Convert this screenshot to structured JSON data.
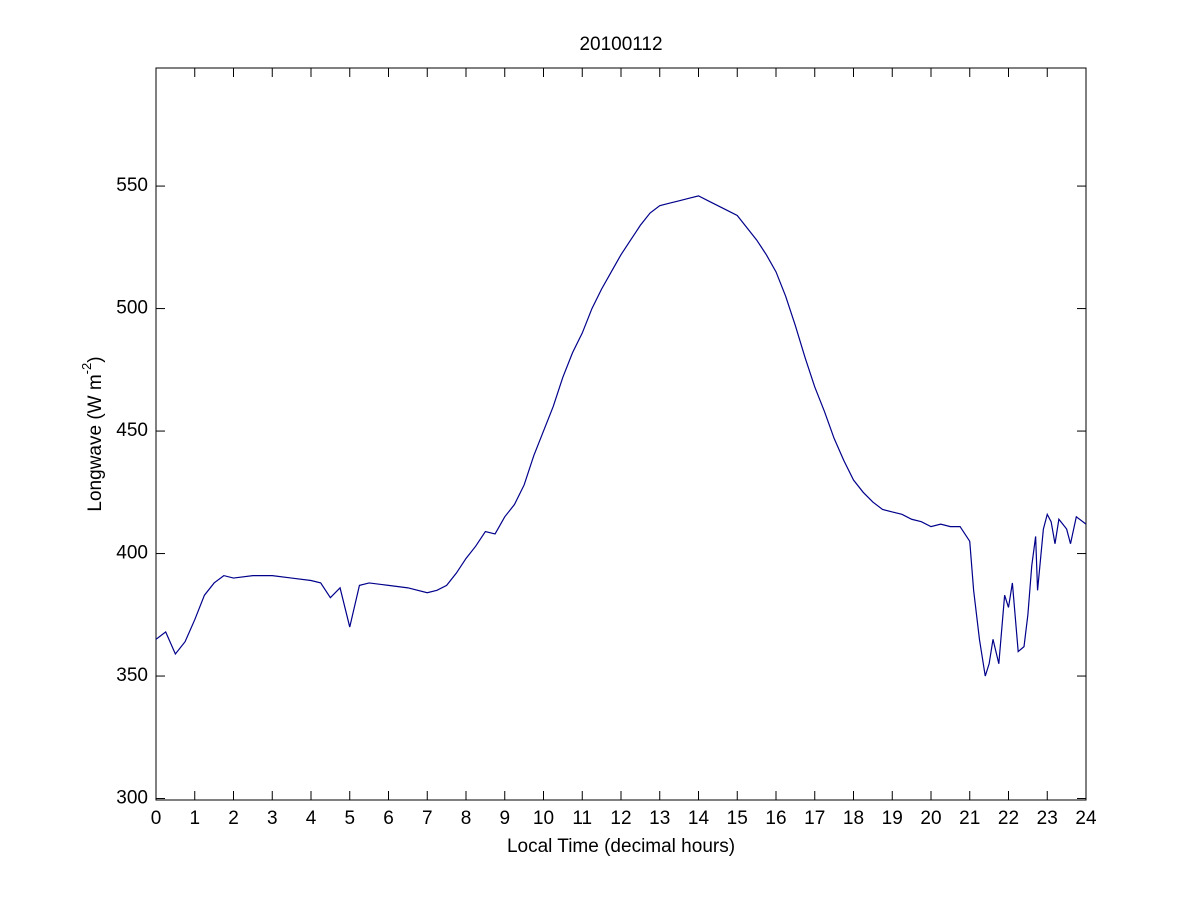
{
  "chart_data": {
    "type": "line",
    "title": "20100112",
    "xlabel": "Local Time (decimal hours)",
    "ylabel": {
      "text": "Longwave (W m",
      "superscript": "-2",
      "suffix": ")"
    },
    "xlim": [
      0,
      24
    ],
    "ylim": [
      299.4,
      598.2
    ],
    "xticks": [
      0,
      1,
      2,
      3,
      4,
      5,
      6,
      7,
      8,
      9,
      10,
      11,
      12,
      13,
      14,
      15,
      16,
      17,
      18,
      19,
      20,
      21,
      22,
      23,
      24
    ],
    "yticks": [
      300,
      350,
      400,
      450,
      500,
      550
    ],
    "grid": false,
    "series": [
      {
        "color": "#00008b",
        "x": [
          0,
          0.25,
          0.5,
          0.75,
          1,
          1.25,
          1.5,
          1.75,
          2,
          2.5,
          3,
          3.5,
          4,
          4.25,
          4.5,
          4.75,
          5,
          5.25,
          5.5,
          6,
          6.5,
          7,
          7.25,
          7.5,
          7.75,
          8,
          8.25,
          8.5,
          8.75,
          9,
          9.25,
          9.5,
          9.75,
          10,
          10.25,
          10.5,
          10.75,
          11,
          11.25,
          11.5,
          11.75,
          12,
          12.25,
          12.5,
          12.75,
          13,
          13.25,
          13.5,
          13.75,
          14,
          14.25,
          14.5,
          14.75,
          15,
          15.25,
          15.5,
          15.75,
          16,
          16.25,
          16.5,
          16.75,
          17,
          17.25,
          17.5,
          17.75,
          18,
          18.25,
          18.5,
          18.75,
          19,
          19.25,
          19.5,
          19.75,
          20,
          20.25,
          20.5,
          20.75,
          21,
          21.1,
          21.25,
          21.4,
          21.5,
          21.6,
          21.75,
          21.9,
          22,
          22.1,
          22.25,
          22.4,
          22.5,
          22.6,
          22.7,
          22.75,
          22.9,
          23,
          23.1,
          23.2,
          23.3,
          23.5,
          23.6,
          23.75,
          24
        ],
        "values": [
          365,
          368,
          359,
          364,
          373,
          383,
          388,
          391,
          390,
          391,
          391,
          390,
          389,
          388,
          382,
          386,
          370,
          387,
          388,
          387,
          386,
          384,
          385,
          387,
          392,
          398,
          403,
          409,
          408,
          415,
          420,
          428,
          440,
          450,
          460,
          472,
          482,
          490,
          500,
          508,
          515,
          522,
          528,
          534,
          539,
          542,
          543,
          544,
          545,
          546,
          544,
          542,
          540,
          538,
          533,
          528,
          522,
          515,
          505,
          493,
          480,
          468,
          458,
          447,
          438,
          430,
          425,
          421,
          418,
          417,
          416,
          414,
          413,
          411,
          412,
          411,
          411,
          405,
          385,
          365,
          350,
          355,
          365,
          355,
          383,
          378,
          388,
          360,
          362,
          375,
          395,
          407,
          385,
          410,
          416,
          413,
          404,
          414,
          410,
          404,
          415,
          412
        ]
      }
    ]
  }
}
